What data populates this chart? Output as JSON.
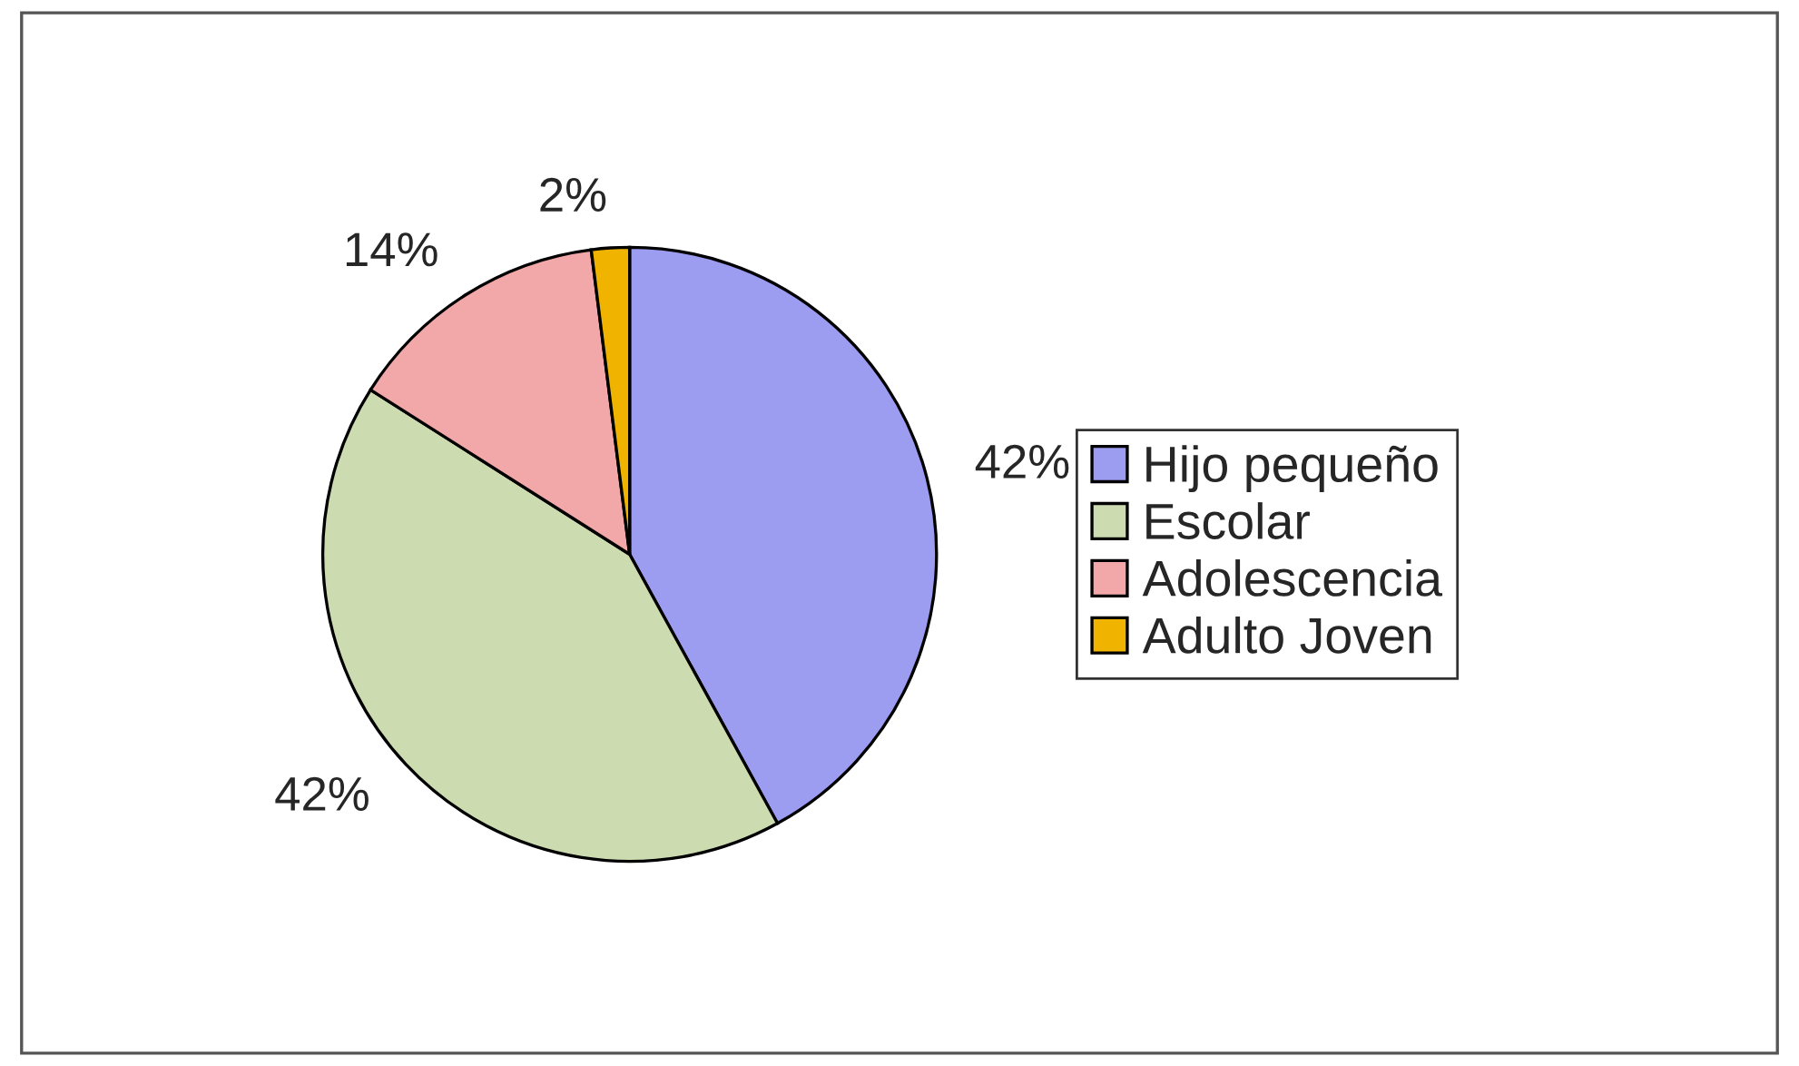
{
  "chart_data": {
    "type": "pie",
    "categories": [
      "Hijo pequeño",
      "Escolar",
      "Adolescencia",
      "Adulto Joven"
    ],
    "values": [
      42,
      42,
      14,
      2
    ],
    "value_labels": [
      "42%",
      "42%",
      "14%",
      "2%"
    ],
    "colors": [
      "#9c9cf0",
      "#cddcb0",
      "#f2a8a8",
      "#f0b400"
    ],
    "legend": "right"
  }
}
